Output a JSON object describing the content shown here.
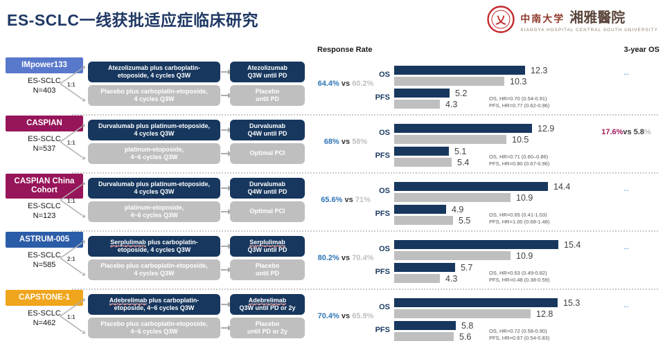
{
  "header": {
    "title": "ES-SCLC一线获批适应症临床研究"
  },
  "logo": {
    "cn_university": "中南大学",
    "cn_hospital": "湘雅醫院",
    "en_caption": "XIANGYA HOSPITAL CENTRAL SOUTH UNIVERSITY"
  },
  "columns": {
    "response_rate": "Response Rate",
    "three_year_os": "3-year OS"
  },
  "labels": {
    "os": "OS",
    "pfs": "PFS"
  },
  "colors": {
    "title_navy": "#1F3864",
    "bar_navy": "#17375E",
    "bar_gray": "#BFBFBF",
    "response_blue": "#2E74B5",
    "magenta": "#A3195B",
    "dash_blue": "#9DC3E6",
    "impower_badge": "#5878CB",
    "caspian_badge": "#97155A",
    "astrum_badge": "#2B5CA8",
    "capstone_badge": "#EFA51C"
  },
  "rows": [
    {
      "trial": "IMpower133",
      "badge_color": "#5878CB",
      "cohort_line1": "ES-SCLC",
      "cohort_line2": "N=403",
      "ratio": "1:1",
      "arm_exp": {
        "u": "",
        "l1": "Atezolizumab plus carboplatin-",
        "l2": "etoposide, 4 cycles Q3W"
      },
      "arm_exp_follow": {
        "u": "",
        "l1": "Atezolizumab",
        "l2": "Q3W until PD"
      },
      "arm_ctrl": {
        "l1": "Placebo plus carboplatin-etoposide,",
        "l2": "4 cycles Q3W"
      },
      "arm_ctrl_follow": {
        "l1": "Placebo",
        "l2": "until PD"
      },
      "rr_win": "64.4%",
      "rr_vs": "vs",
      "rr_lose": "60.2%",
      "os_exp": 12.3,
      "os_ctrl": 10.3,
      "pfs_exp": 5.2,
      "pfs_ctrl": 4.3,
      "hr_os": "OS, HR=0.70 (0.54-0.91)",
      "hr_pfs": "PFS, HR=0.77 (0.62-0.96)",
      "os3": {
        "dash": "--"
      }
    },
    {
      "trial": "CASPIAN",
      "badge_color": "#97155A",
      "cohort_line1": "ES-SCLC",
      "cohort_line2": "N=537",
      "ratio": "1:1",
      "arm_exp": {
        "u": "",
        "l1": "Durvalumab plus platinum-etoposide,",
        "l2": "4 cycles Q3W"
      },
      "arm_exp_follow": {
        "u": "",
        "l1": "Durvalumab",
        "l2": "Q4W until PD"
      },
      "arm_ctrl": {
        "l1": "platinum-etoposide,",
        "l2": "4~6 cycles Q3W"
      },
      "arm_ctrl_follow": {
        "l1": "Optimal PCI",
        "l2": ""
      },
      "rr_win": "68%",
      "rr_vs": "vs",
      "rr_lose": "58%",
      "os_exp": 12.9,
      "os_ctrl": 10.5,
      "pfs_exp": 5.1,
      "pfs_ctrl": 5.4,
      "hr_os": "OS, HR=0.71 (0.60–0.86)",
      "hr_pfs": "PFS, HR=0.80 (0.67-0.96)",
      "os3": {
        "win": "17.6%",
        "vs": "vs",
        "lose": "5.8",
        "pct": "%"
      }
    },
    {
      "trial": "CASPIAN China Cohort",
      "badge_color": "#97155A",
      "cohort_line1": "ES-SCLC",
      "cohort_line2": "N=123",
      "ratio": "1:1",
      "arm_exp": {
        "u": "",
        "l1": "Durvalumab plus platinum-etoposide,",
        "l2": "4 cycles Q3W"
      },
      "arm_exp_follow": {
        "u": "",
        "l1": "Durvalumab",
        "l2": "Q4W until PD"
      },
      "arm_ctrl": {
        "l1": "platinum-etoposide,",
        "l2": "4~6 cycles Q3W"
      },
      "arm_ctrl_follow": {
        "l1": "Optimal PCI",
        "l2": ""
      },
      "rr_win": "65.6%",
      "rr_vs": "vs",
      "rr_lose": "71%",
      "os_exp": 14.4,
      "os_ctrl": 10.9,
      "pfs_exp": 4.9,
      "pfs_ctrl": 5.5,
      "hr_os": "OS, HR=0.65 (0.41-1.03)",
      "hr_pfs": "PFS, HR=1.00 (0.68-1.48)",
      "os3": {
        "dash": "--"
      }
    },
    {
      "trial": "ASTRUM-005",
      "badge_color": "#2B5CA8",
      "cohort_line1": "ES-SCLC",
      "cohort_line2": "N=585",
      "ratio": "2:1",
      "arm_exp": {
        "u": "Serplulimab",
        "l1": " plus carboplatin-",
        "l2": "etoposide, 4 cycles Q3W"
      },
      "arm_exp_follow": {
        "u": "Serplulimab",
        "l1": "",
        "l2": "Q3W until PD"
      },
      "arm_ctrl": {
        "l1": "Placebo plus carboplatin-etoposide,",
        "l2": "4 cycles Q3W"
      },
      "arm_ctrl_follow": {
        "l1": "Placebo",
        "l2": "until PD"
      },
      "rr_win": "80.2%",
      "rr_vs": "vs",
      "rr_lose": "70.4%",
      "os_exp": 15.4,
      "os_ctrl": 10.9,
      "pfs_exp": 5.7,
      "pfs_ctrl": 4.3,
      "hr_os": "OS, HR=0.63 (0.49-0.82)",
      "hr_pfs": "PFS, HR=0.48 (0.38-0.59)",
      "os3": {
        "dash": "--"
      }
    },
    {
      "trial": "CAPSTONE-1",
      "badge_color": "#EFA51C",
      "cohort_line1": "ES-SCLC",
      "cohort_line2": "N=462",
      "ratio": "1:1",
      "arm_exp": {
        "u": "Adebrelimab",
        "l1": " plus carboplatin-",
        "l2": "etoposide, 4~6 cycles Q3W"
      },
      "arm_exp_follow": {
        "u": "Adebrelimab",
        "l1": "",
        "l2": "Q3W until PD or 2y"
      },
      "arm_ctrl": {
        "l1": "Placebo plus carboplatin-etoposide,",
        "l2": "4~6 cycles Q3W"
      },
      "arm_ctrl_follow": {
        "l1": "Placebo",
        "l2": "until PD or 2y"
      },
      "rr_win": "70.4%",
      "rr_vs": "vs",
      "rr_lose": "65.9%",
      "os_exp": 15.3,
      "os_ctrl": 12.8,
      "pfs_exp": 5.8,
      "pfs_ctrl": 5.6,
      "hr_os": "OS, HR=0.72 (0.58-0.90)",
      "hr_pfs": "PFS, HR=0.67 (0.54-0.83)",
      "os3": {
        "dash": "--"
      }
    }
  ],
  "chart_data": [
    {
      "type": "bar",
      "trial": "IMpower133",
      "categories": [
        "OS",
        "PFS"
      ],
      "series": [
        {
          "name": "experimental",
          "values": [
            12.3,
            5.2
          ]
        },
        {
          "name": "control",
          "values": [
            10.3,
            4.3
          ]
        }
      ],
      "response_rate": "64.4% vs 60.2%",
      "hr": [
        "OS, HR=0.70 (0.54-0.91)",
        "PFS, HR=0.77 (0.62-0.96)"
      ],
      "three_year_os": "--"
    },
    {
      "type": "bar",
      "trial": "CASPIAN",
      "categories": [
        "OS",
        "PFS"
      ],
      "series": [
        {
          "name": "experimental",
          "values": [
            12.9,
            5.1
          ]
        },
        {
          "name": "control",
          "values": [
            10.5,
            5.4
          ]
        }
      ],
      "response_rate": "68% vs 58%",
      "hr": [
        "OS, HR=0.71 (0.60–0.86)",
        "PFS, HR=0.80 (0.67-0.96)"
      ],
      "three_year_os": "17.6% vs 5.8%"
    },
    {
      "type": "bar",
      "trial": "CASPIAN China Cohort",
      "categories": [
        "OS",
        "PFS"
      ],
      "series": [
        {
          "name": "experimental",
          "values": [
            14.4,
            4.9
          ]
        },
        {
          "name": "control",
          "values": [
            10.9,
            5.5
          ]
        }
      ],
      "response_rate": "65.6% vs 71%",
      "hr": [
        "OS, HR=0.65 (0.41-1.03)",
        "PFS, HR=1.00 (0.68-1.48)"
      ],
      "three_year_os": "--"
    },
    {
      "type": "bar",
      "trial": "ASTRUM-005",
      "categories": [
        "OS",
        "PFS"
      ],
      "series": [
        {
          "name": "experimental",
          "values": [
            15.4,
            5.7
          ]
        },
        {
          "name": "control",
          "values": [
            10.9,
            4.3
          ]
        }
      ],
      "response_rate": "80.2% vs 70.4%",
      "hr": [
        "OS, HR=0.63 (0.49-0.82)",
        "PFS, HR=0.48 (0.38-0.59)"
      ],
      "three_year_os": "--"
    },
    {
      "type": "bar",
      "trial": "CAPSTONE-1",
      "categories": [
        "OS",
        "PFS"
      ],
      "series": [
        {
          "name": "experimental",
          "values": [
            15.3,
            5.8
          ]
        },
        {
          "name": "control",
          "values": [
            12.8,
            5.6
          ]
        }
      ],
      "response_rate": "70.4% vs 65.9%",
      "hr": [
        "OS, HR=0.72 (0.58-0.90)",
        "PFS, HR=0.67 (0.54-0.83)"
      ],
      "three_year_os": "--"
    }
  ]
}
